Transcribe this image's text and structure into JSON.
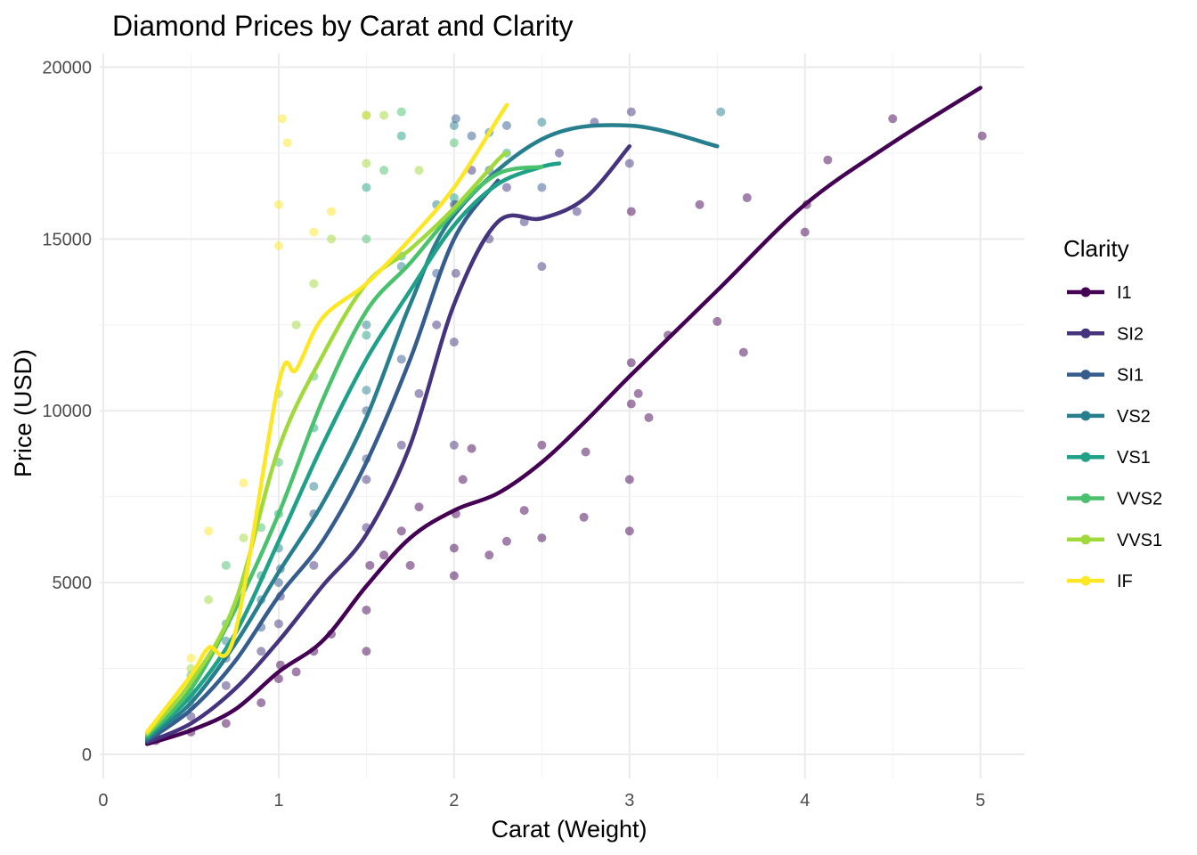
{
  "chart_data": {
    "type": "scatter",
    "title": "Diamond Prices by Carat and Clarity",
    "xlabel": "Carat (Weight)",
    "ylabel": "Price (USD)",
    "xlim": [
      -0.02,
      5.25
    ],
    "ylim": [
      -700,
      20400
    ],
    "x_ticks": [
      0,
      1,
      2,
      3,
      4,
      5
    ],
    "y_ticks": [
      0,
      5000,
      10000,
      15000,
      20000
    ],
    "grid": true,
    "legend_title": "Clarity",
    "legend_position": "right",
    "point_opacity": 0.5,
    "series": [
      {
        "name": "I1",
        "color": "#440154",
        "trend": [
          [
            0.25,
            300
          ],
          [
            0.5,
            700
          ],
          [
            0.75,
            1300
          ],
          [
            1.0,
            2400
          ],
          [
            1.25,
            3300
          ],
          [
            1.5,
            4900
          ],
          [
            1.75,
            6300
          ],
          [
            2.0,
            7100
          ],
          [
            2.25,
            7600
          ],
          [
            2.5,
            8500
          ],
          [
            2.75,
            9700
          ],
          [
            3.0,
            11000
          ],
          [
            3.5,
            13500
          ],
          [
            4.0,
            16000
          ],
          [
            4.5,
            17800
          ],
          [
            5.0,
            19400
          ]
        ],
        "points": [
          [
            0.3,
            400
          ],
          [
            0.5,
            650
          ],
          [
            0.7,
            900
          ],
          [
            0.9,
            1500
          ],
          [
            1.0,
            2200
          ],
          [
            1.01,
            2600
          ],
          [
            1.1,
            2400
          ],
          [
            1.2,
            3000
          ],
          [
            1.3,
            3500
          ],
          [
            1.5,
            3000
          ],
          [
            1.5,
            4200
          ],
          [
            1.52,
            5500
          ],
          [
            1.6,
            5800
          ],
          [
            1.7,
            6500
          ],
          [
            1.75,
            5500
          ],
          [
            1.8,
            7200
          ],
          [
            2.0,
            5200
          ],
          [
            2.0,
            6000
          ],
          [
            2.01,
            7000
          ],
          [
            2.05,
            8000
          ],
          [
            2.1,
            8900
          ],
          [
            2.2,
            5800
          ],
          [
            2.3,
            6200
          ],
          [
            2.4,
            7100
          ],
          [
            2.5,
            6300
          ],
          [
            2.5,
            9000
          ],
          [
            2.74,
            6900
          ],
          [
            2.75,
            8800
          ],
          [
            3.0,
            6500
          ],
          [
            3.0,
            8000
          ],
          [
            3.01,
            10200
          ],
          [
            3.01,
            11400
          ],
          [
            3.01,
            15800
          ],
          [
            3.05,
            10500
          ],
          [
            3.11,
            9800
          ],
          [
            3.22,
            12200
          ],
          [
            3.4,
            16000
          ],
          [
            3.5,
            12600
          ],
          [
            3.65,
            11700
          ],
          [
            3.67,
            16200
          ],
          [
            4.0,
            15200
          ],
          [
            4.01,
            16000
          ],
          [
            4.13,
            17300
          ],
          [
            4.5,
            18500
          ],
          [
            5.01,
            18000
          ]
        ]
      },
      {
        "name": "SI2",
        "color": "#46337E",
        "trend": [
          [
            0.25,
            350
          ],
          [
            0.5,
            900
          ],
          [
            0.75,
            1900
          ],
          [
            1.0,
            3300
          ],
          [
            1.25,
            4900
          ],
          [
            1.5,
            6400
          ],
          [
            1.75,
            9000
          ],
          [
            2.0,
            13100
          ],
          [
            2.25,
            15500
          ],
          [
            2.5,
            15600
          ],
          [
            2.75,
            16200
          ],
          [
            3.0,
            17700
          ]
        ],
        "points": [
          [
            0.3,
            500
          ],
          [
            0.5,
            1100
          ],
          [
            0.7,
            2000
          ],
          [
            0.9,
            3000
          ],
          [
            1.0,
            3800
          ],
          [
            1.01,
            4600
          ],
          [
            1.2,
            5500
          ],
          [
            1.5,
            6600
          ],
          [
            1.5,
            8000
          ],
          [
            1.7,
            9000
          ],
          [
            1.8,
            10500
          ],
          [
            1.9,
            12500
          ],
          [
            2.0,
            9000
          ],
          [
            2.0,
            12000
          ],
          [
            2.01,
            14000
          ],
          [
            2.01,
            16000
          ],
          [
            2.1,
            17000
          ],
          [
            2.2,
            15000
          ],
          [
            2.3,
            16500
          ],
          [
            2.4,
            15500
          ],
          [
            2.5,
            14200
          ],
          [
            2.6,
            17500
          ],
          [
            2.7,
            15800
          ],
          [
            2.8,
            18400
          ],
          [
            3.0,
            17200
          ],
          [
            3.01,
            18700
          ]
        ]
      },
      {
        "name": "SI1",
        "color": "#365C8D",
        "trend": [
          [
            0.25,
            400
          ],
          [
            0.5,
            1300
          ],
          [
            0.75,
            2700
          ],
          [
            1.0,
            4600
          ],
          [
            1.25,
            6200
          ],
          [
            1.5,
            8500
          ],
          [
            1.75,
            11500
          ],
          [
            2.0,
            15000
          ],
          [
            2.25,
            16700
          ]
        ],
        "points": [
          [
            0.3,
            550
          ],
          [
            0.5,
            1400
          ],
          [
            0.7,
            2800
          ],
          [
            0.9,
            3700
          ],
          [
            1.0,
            5000
          ],
          [
            1.01,
            5400
          ],
          [
            1.2,
            7000
          ],
          [
            1.5,
            8600
          ],
          [
            1.5,
            10000
          ],
          [
            1.7,
            11500
          ],
          [
            1.9,
            14000
          ],
          [
            2.0,
            16000
          ],
          [
            2.01,
            18500
          ],
          [
            2.1,
            18000
          ],
          [
            2.2,
            17000
          ],
          [
            2.3,
            18300
          ],
          [
            2.5,
            16500
          ]
        ]
      },
      {
        "name": "VS2",
        "color": "#277F8E",
        "trend": [
          [
            0.25,
            450
          ],
          [
            0.5,
            1500
          ],
          [
            0.75,
            3200
          ],
          [
            1.0,
            5300
          ],
          [
            1.25,
            7300
          ],
          [
            1.5,
            9800
          ],
          [
            1.75,
            13100
          ],
          [
            2.0,
            15700
          ],
          [
            2.5,
            17900
          ],
          [
            3.0,
            18300
          ],
          [
            3.5,
            17700
          ]
        ],
        "points": [
          [
            0.3,
            600
          ],
          [
            0.5,
            1600
          ],
          [
            0.7,
            3300
          ],
          [
            0.9,
            4500
          ],
          [
            1.0,
            6000
          ],
          [
            1.2,
            7800
          ],
          [
            1.5,
            10600
          ],
          [
            1.5,
            12500
          ],
          [
            1.7,
            14200
          ],
          [
            1.9,
            16000
          ],
          [
            2.0,
            18300
          ],
          [
            2.2,
            18100
          ],
          [
            2.5,
            18400
          ],
          [
            3.52,
            18700
          ]
        ]
      },
      {
        "name": "VS1",
        "color": "#1FA187",
        "trend": [
          [
            0.25,
            500
          ],
          [
            0.5,
            1700
          ],
          [
            0.75,
            3500
          ],
          [
            1.0,
            6200
          ],
          [
            1.25,
            9000
          ],
          [
            1.5,
            11500
          ],
          [
            1.75,
            13500
          ],
          [
            2.0,
            15400
          ],
          [
            2.25,
            16600
          ],
          [
            2.5,
            17100
          ],
          [
            2.6,
            17200
          ]
        ],
        "points": [
          [
            0.3,
            650
          ],
          [
            0.5,
            1800
          ],
          [
            0.7,
            3800
          ],
          [
            0.9,
            5200
          ],
          [
            1.0,
            7000
          ],
          [
            1.2,
            9500
          ],
          [
            1.5,
            12200
          ],
          [
            1.5,
            16500
          ],
          [
            1.7,
            14500
          ],
          [
            1.7,
            18000
          ],
          [
            2.0,
            16200
          ],
          [
            2.3,
            17500
          ]
        ]
      },
      {
        "name": "VVS2",
        "color": "#4AC16D",
        "trend": [
          [
            0.25,
            550
          ],
          [
            0.5,
            1900
          ],
          [
            0.75,
            4200
          ],
          [
            1.0,
            7000
          ],
          [
            1.25,
            10300
          ],
          [
            1.5,
            12900
          ],
          [
            1.75,
            14300
          ],
          [
            2.0,
            15800
          ],
          [
            2.25,
            16900
          ],
          [
            2.5,
            17100
          ]
        ],
        "points": [
          [
            0.3,
            700
          ],
          [
            0.5,
            2300
          ],
          [
            0.7,
            5500
          ],
          [
            0.9,
            6600
          ],
          [
            1.0,
            8500
          ],
          [
            1.2,
            11000
          ],
          [
            1.5,
            15000
          ],
          [
            1.5,
            18600
          ],
          [
            1.6,
            17000
          ],
          [
            1.7,
            18700
          ],
          [
            2.0,
            17800
          ]
        ]
      },
      {
        "name": "VVS1",
        "color": "#9FDA3A",
        "trend": [
          [
            0.25,
            600
          ],
          [
            0.5,
            2100
          ],
          [
            0.75,
            4400
          ],
          [
            1.0,
            8900
          ],
          [
            1.25,
            11600
          ],
          [
            1.5,
            13700
          ],
          [
            1.75,
            14700
          ],
          [
            2.0,
            15900
          ],
          [
            2.25,
            17300
          ],
          [
            2.3,
            17500
          ]
        ],
        "points": [
          [
            0.3,
            750
          ],
          [
            0.5,
            2500
          ],
          [
            0.6,
            4500
          ],
          [
            0.8,
            6300
          ],
          [
            1.0,
            10500
          ],
          [
            1.1,
            12500
          ],
          [
            1.2,
            13700
          ],
          [
            1.3,
            15000
          ],
          [
            1.5,
            17200
          ],
          [
            1.6,
            18600
          ],
          [
            1.8,
            17000
          ]
        ]
      },
      {
        "name": "IF",
        "color": "#FDE725",
        "trend": [
          [
            0.25,
            650
          ],
          [
            0.5,
            2300
          ],
          [
            0.6,
            3100
          ],
          [
            0.75,
            3500
          ],
          [
            1.0,
            10800
          ],
          [
            1.1,
            11200
          ],
          [
            1.25,
            12700
          ],
          [
            1.5,
            13700
          ],
          [
            1.75,
            15000
          ],
          [
            2.0,
            16500
          ],
          [
            2.25,
            18500
          ],
          [
            2.3,
            18900
          ]
        ],
        "points": [
          [
            0.3,
            800
          ],
          [
            0.5,
            2800
          ],
          [
            0.6,
            6500
          ],
          [
            0.8,
            7900
          ],
          [
            1.0,
            14800
          ],
          [
            1.0,
            16000
          ],
          [
            1.02,
            18500
          ],
          [
            1.05,
            17800
          ],
          [
            1.2,
            15200
          ],
          [
            1.3,
            15800
          ],
          [
            1.5,
            18600
          ]
        ]
      }
    ]
  }
}
